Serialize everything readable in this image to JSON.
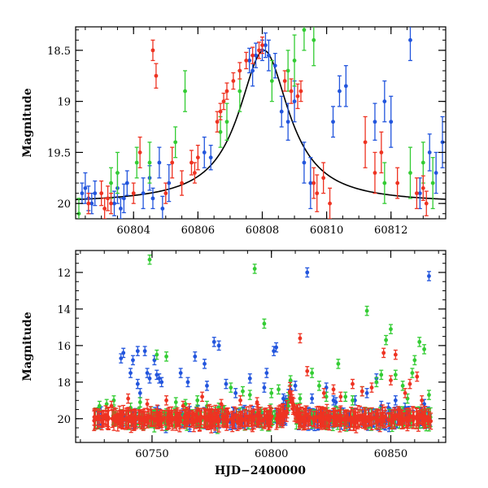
{
  "chart_data": [
    {
      "type": "scatter",
      "panel": "top",
      "title": "",
      "xlabel": "",
      "ylabel": "Magnitude",
      "xlim": [
        60802.2,
        60813.7
      ],
      "ylim": [
        20.15,
        18.27
      ],
      "x_ticks": [
        60804,
        60806,
        60808,
        60810,
        60812
      ],
      "x_tick_labels": [
        "60804",
        "60806",
        "60808",
        "60810",
        "60812"
      ],
      "y_ticks": [
        18.5,
        19,
        19.5,
        20
      ],
      "y_tick_labels": [
        "18.5",
        "19",
        "19.5",
        "20"
      ],
      "grid": false,
      "series": [
        {
          "color": "#2255dd",
          "points": [
            [
              60802.4,
              19.9,
              0.1
            ],
            [
              60802.5,
              19.85,
              0.15
            ],
            [
              60802.6,
              19.95,
              0.12
            ],
            [
              60802.7,
              20.0,
              0.1
            ],
            [
              60802.8,
              19.9,
              0.12
            ],
            [
              60803.4,
              20.0,
              0.12
            ],
            [
              60803.5,
              19.85,
              0.15
            ],
            [
              60803.6,
              20.05,
              0.1
            ],
            [
              60803.7,
              19.95,
              0.14
            ],
            [
              60803.8,
              19.8,
              0.12
            ],
            [
              60804.3,
              19.9,
              0.15
            ],
            [
              60804.5,
              19.75,
              0.12
            ],
            [
              60804.6,
              19.95,
              0.1
            ],
            [
              60804.8,
              19.6,
              0.15
            ],
            [
              60804.9,
              20.05,
              0.12
            ],
            [
              60805.1,
              19.8,
              0.18
            ],
            [
              60806.2,
              19.5,
              0.15
            ],
            [
              60806.4,
              19.55,
              0.12
            ],
            [
              60807.6,
              18.6,
              0.12
            ],
            [
              60807.7,
              18.7,
              0.15
            ],
            [
              60807.8,
              18.55,
              0.12
            ],
            [
              60808.0,
              18.5,
              0.1
            ],
            [
              60808.1,
              18.45,
              0.12
            ],
            [
              60808.2,
              18.55,
              0.15
            ],
            [
              60808.4,
              18.65,
              0.12
            ],
            [
              60808.6,
              19.1,
              0.15
            ],
            [
              60808.8,
              19.2,
              0.18
            ],
            [
              60809.0,
              19.0,
              0.2
            ],
            [
              60809.3,
              19.6,
              0.2
            ],
            [
              60809.5,
              19.8,
              0.25
            ],
            [
              60810.2,
              19.2,
              0.15
            ],
            [
              60810.4,
              18.9,
              0.15
            ],
            [
              60810.6,
              18.85,
              0.2
            ],
            [
              60811.5,
              19.2,
              0.18
            ],
            [
              60811.8,
              19.0,
              0.2
            ],
            [
              60812.0,
              19.2,
              0.25
            ],
            [
              60812.6,
              18.4,
              0.2
            ],
            [
              60812.9,
              19.9,
              0.15
            ],
            [
              60813.2,
              19.5,
              0.18
            ],
            [
              60813.4,
              19.7,
              0.2
            ],
            [
              60813.6,
              19.4,
              0.25
            ]
          ]
        },
        {
          "color": "#33cc33",
          "points": [
            [
              60802.3,
              20.1,
              0.15
            ],
            [
              60803.3,
              19.8,
              0.15
            ],
            [
              60803.5,
              19.7,
              0.2
            ],
            [
              60804.1,
              19.6,
              0.15
            ],
            [
              60804.5,
              19.6,
              0.2
            ],
            [
              60805.3,
              19.4,
              0.15
            ],
            [
              60805.6,
              18.9,
              0.2
            ],
            [
              60806.7,
              19.3,
              0.15
            ],
            [
              60806.9,
              19.2,
              0.18
            ],
            [
              60807.3,
              18.9,
              0.2
            ],
            [
              60808.3,
              18.8,
              0.2
            ],
            [
              60808.8,
              18.7,
              0.2
            ],
            [
              60809.0,
              18.6,
              0.25
            ],
            [
              60809.3,
              18.3,
              0.2
            ],
            [
              60809.6,
              18.4,
              0.25
            ],
            [
              60811.8,
              19.8,
              0.2
            ],
            [
              60812.6,
              19.7,
              0.25
            ],
            [
              60813.0,
              19.6,
              0.2
            ],
            [
              60813.3,
              19.8,
              0.25
            ]
          ]
        },
        {
          "color": "#ee3322",
          "points": [
            [
              60802.6,
              20.0,
              0.1
            ],
            [
              60803.0,
              19.9,
              0.12
            ],
            [
              60803.1,
              20.05,
              0.1
            ],
            [
              60803.2,
              19.95,
              0.12
            ],
            [
              60803.3,
              20.0,
              0.1
            ],
            [
              60804.0,
              19.9,
              0.1
            ],
            [
              60804.2,
              19.5,
              0.15
            ],
            [
              60804.6,
              18.5,
              0.1
            ],
            [
              60804.7,
              18.75,
              0.12
            ],
            [
              60805.0,
              19.9,
              0.1
            ],
            [
              60805.2,
              19.6,
              0.15
            ],
            [
              60805.5,
              19.8,
              0.12
            ],
            [
              60805.8,
              19.6,
              0.12
            ],
            [
              60805.9,
              19.7,
              0.1
            ],
            [
              60806.0,
              19.55,
              0.12
            ],
            [
              60806.6,
              19.2,
              0.1
            ],
            [
              60806.7,
              19.1,
              0.08
            ],
            [
              60806.8,
              19.0,
              0.08
            ],
            [
              60806.9,
              18.9,
              0.08
            ],
            [
              60807.1,
              18.8,
              0.08
            ],
            [
              60807.3,
              18.7,
              0.08
            ],
            [
              60807.5,
              18.6,
              0.08
            ],
            [
              60807.7,
              18.55,
              0.08
            ],
            [
              60807.9,
              18.5,
              0.08
            ],
            [
              60808.0,
              18.45,
              0.08
            ],
            [
              60808.7,
              18.8,
              0.1
            ],
            [
              60808.9,
              18.9,
              0.12
            ],
            [
              60809.1,
              18.95,
              0.12
            ],
            [
              60809.2,
              18.9,
              0.1
            ],
            [
              60809.6,
              19.8,
              0.15
            ],
            [
              60809.7,
              19.9,
              0.18
            ],
            [
              60809.9,
              19.75,
              0.15
            ],
            [
              60810.1,
              20.0,
              0.15
            ],
            [
              60811.2,
              19.4,
              0.25
            ],
            [
              60811.5,
              19.7,
              0.2
            ],
            [
              60811.7,
              19.5,
              0.2
            ],
            [
              60812.2,
              19.8,
              0.15
            ],
            [
              60812.8,
              19.9,
              0.15
            ],
            [
              60813.0,
              19.85,
              0.12
            ],
            [
              60813.1,
              20.0,
              0.12
            ]
          ]
        }
      ],
      "model_curve": {
        "type": "lorentzian",
        "baseline": 20.0,
        "peak": 18.5,
        "center": 60808.05,
        "half_width": 0.95
      }
    },
    {
      "type": "scatter",
      "panel": "bottom",
      "title": "",
      "xlabel": "HJD−2400000",
      "ylabel": "Magnitude",
      "xlim": [
        60718,
        60873
      ],
      "ylim": [
        21.3,
        10.8
      ],
      "x_ticks": [
        60750,
        60800,
        60850
      ],
      "x_tick_labels": [
        "60750",
        "60800",
        "60850"
      ],
      "y_ticks": [
        12,
        14,
        16,
        18,
        20
      ],
      "y_tick_labels": [
        "12",
        "14",
        "16",
        "18",
        "20"
      ],
      "grid": false,
      "series": [
        {
          "color": "#2255dd",
          "points": [
            [
              60737,
              16.7
            ],
            [
              60738,
              16.4
            ],
            [
              60741,
              17.5
            ],
            [
              60742,
              16.8
            ],
            [
              60744,
              16.3
            ],
            [
              60744,
              18.1
            ],
            [
              60745,
              18.6
            ],
            [
              60747,
              16.3
            ],
            [
              60748,
              17.5
            ],
            [
              60749,
              17.8
            ],
            [
              60751,
              16.8
            ],
            [
              60752,
              17.6
            ],
            [
              60754,
              18.0
            ],
            [
              60753,
              17.8
            ],
            [
              60762,
              17.5
            ],
            [
              60765,
              18.0
            ],
            [
              60768,
              16.6
            ],
            [
              60772,
              17.0
            ],
            [
              60773,
              18.2
            ],
            [
              60776,
              15.8
            ],
            [
              60778,
              16.0
            ],
            [
              60781,
              18.1
            ],
            [
              60785,
              18.6
            ],
            [
              60791,
              17.8
            ],
            [
              60797,
              18.3
            ],
            [
              60798,
              17.5
            ],
            [
              60801,
              16.3
            ],
            [
              60802,
              16.1
            ],
            [
              60805,
              18.9
            ],
            [
              60806,
              19.0
            ],
            [
              60810,
              18.2
            ],
            [
              60815,
              12.0
            ],
            [
              60817,
              18.9
            ],
            [
              60823,
              18.3
            ],
            [
              60826,
              19.0
            ],
            [
              60827,
              19.1
            ],
            [
              60835,
              19.0
            ],
            [
              60840,
              18.6
            ],
            [
              60844,
              17.8
            ],
            [
              60846,
              19.3
            ],
            [
              60849,
              19.4
            ],
            [
              60852,
              19.0
            ],
            [
              60856,
              19.4
            ],
            [
              60864,
              19.2
            ],
            [
              60866,
              12.2
            ]
          ]
        },
        {
          "color": "#33cc33",
          "points": [
            [
              60728,
              19.3
            ],
            [
              60731,
              19.2
            ],
            [
              60734,
              19.0
            ],
            [
              60741,
              19.4
            ],
            [
              60745,
              19.1
            ],
            [
              60749,
              11.3
            ],
            [
              60752,
              16.5
            ],
            [
              60756,
              16.6
            ],
            [
              60760,
              19.1
            ],
            [
              60764,
              19.2
            ],
            [
              60769,
              19.0
            ],
            [
              60773,
              19.3
            ],
            [
              60778,
              19.4
            ],
            [
              60783,
              18.3
            ],
            [
              60788,
              18.5
            ],
            [
              60791,
              18.7
            ],
            [
              60793,
              11.8
            ],
            [
              60797,
              14.8
            ],
            [
              60800,
              18.6
            ],
            [
              60803,
              18.4
            ],
            [
              60808,
              17.9
            ],
            [
              60812,
              18.9
            ],
            [
              60817,
              17.5
            ],
            [
              60820,
              18.2
            ],
            [
              60823,
              18.8
            ],
            [
              60828,
              17.0
            ],
            [
              60831,
              18.8
            ],
            [
              60834,
              19.0
            ],
            [
              60838,
              18.5
            ],
            [
              60840,
              14.1
            ],
            [
              60844,
              18.0
            ],
            [
              60846,
              17.6
            ],
            [
              60848,
              15.7
            ],
            [
              60850,
              15.1
            ],
            [
              60852,
              17.6
            ],
            [
              60855,
              18.2
            ],
            [
              60857,
              18.9
            ],
            [
              60859,
              17.5
            ],
            [
              60860,
              16.8
            ],
            [
              60862,
              15.8
            ],
            [
              60864,
              16.2
            ],
            [
              60866,
              18.7
            ]
          ]
        },
        {
          "color": "#ee3322",
          "points": [
            [
              60733,
              19.3
            ],
            [
              60740,
              18.9
            ],
            [
              60748,
              19.2
            ],
            [
              60756,
              19.0
            ],
            [
              60763,
              19.3
            ],
            [
              60771,
              18.8
            ],
            [
              60779,
              19.2
            ],
            [
              60787,
              19.0
            ],
            [
              60794,
              19.1
            ],
            [
              60808,
              18.9
            ],
            [
              60812,
              15.6
            ],
            [
              60815,
              17.4
            ],
            [
              60822,
              18.6
            ],
            [
              60826,
              18.4
            ],
            [
              60829,
              18.8
            ],
            [
              60834,
              18.1
            ],
            [
              60838,
              18.5
            ],
            [
              60842,
              18.3
            ],
            [
              60847,
              16.4
            ],
            [
              60850,
              17.9
            ],
            [
              60852,
              16.5
            ],
            [
              60856,
              18.6
            ],
            [
              60858,
              18.1
            ],
            [
              60861,
              17.7
            ],
            [
              60863,
              19.0
            ]
          ]
        }
      ],
      "baseline": {
        "magnitude": 20.0,
        "scatter": 0.2,
        "x_range": [
          60725,
          60867
        ]
      },
      "flare": {
        "center": 60808,
        "peak": 18.5,
        "half_width": 1.0
      }
    }
  ]
}
